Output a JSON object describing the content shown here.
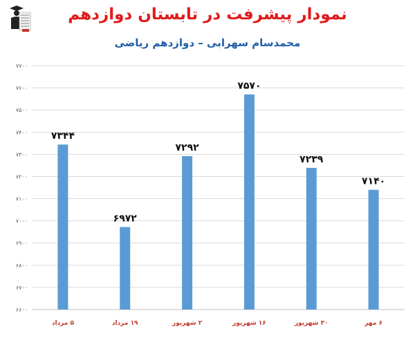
{
  "header": {
    "title": "نمودار پیشرفت در تابستان دوازدهم",
    "subtitle": "محمدسام سهرابی – دوازدهم ریاضی"
  },
  "logo": {
    "icon": "graduate-figure-icon"
  },
  "colors": {
    "bar": "#5b9bd5",
    "title": "#e01b1b",
    "subtitle": "#1f5fa8",
    "category_label": "#c0392b",
    "grid": "#d9d9d9",
    "axis_text": "#595959"
  },
  "chart_data": {
    "type": "bar",
    "categories": [
      "۵ مرداد",
      "۱۹ مرداد",
      "۲ شهریور",
      "۱۶ شهریور",
      "۳۰ شهریور",
      "۶ مهر"
    ],
    "values": [
      7344,
      6972,
      7292,
      7570,
      7239,
      7140
    ],
    "data_labels": [
      "۷۳۴۴",
      "۶۹۷۲",
      "۷۲۹۲",
      "۷۵۷۰",
      "۷۲۳۹",
      "۷۱۴۰"
    ],
    "y_ticks": [
      6600,
      6700,
      6800,
      6900,
      7000,
      7100,
      7200,
      7300,
      7400,
      7500,
      7600,
      7700
    ],
    "y_tick_labels": [
      "۶۶۰۰",
      "۶۷۰۰",
      "۶۸۰۰",
      "۶۹۰۰",
      "۷۰۰۰",
      "۷۱۰۰",
      "۷۲۰۰",
      "۷۳۰۰",
      "۷۴۰۰",
      "۷۵۰۰",
      "۷۶۰۰",
      "۷۷۰۰"
    ],
    "ylim": [
      6600,
      7700
    ],
    "grid": true,
    "legend": "none"
  }
}
